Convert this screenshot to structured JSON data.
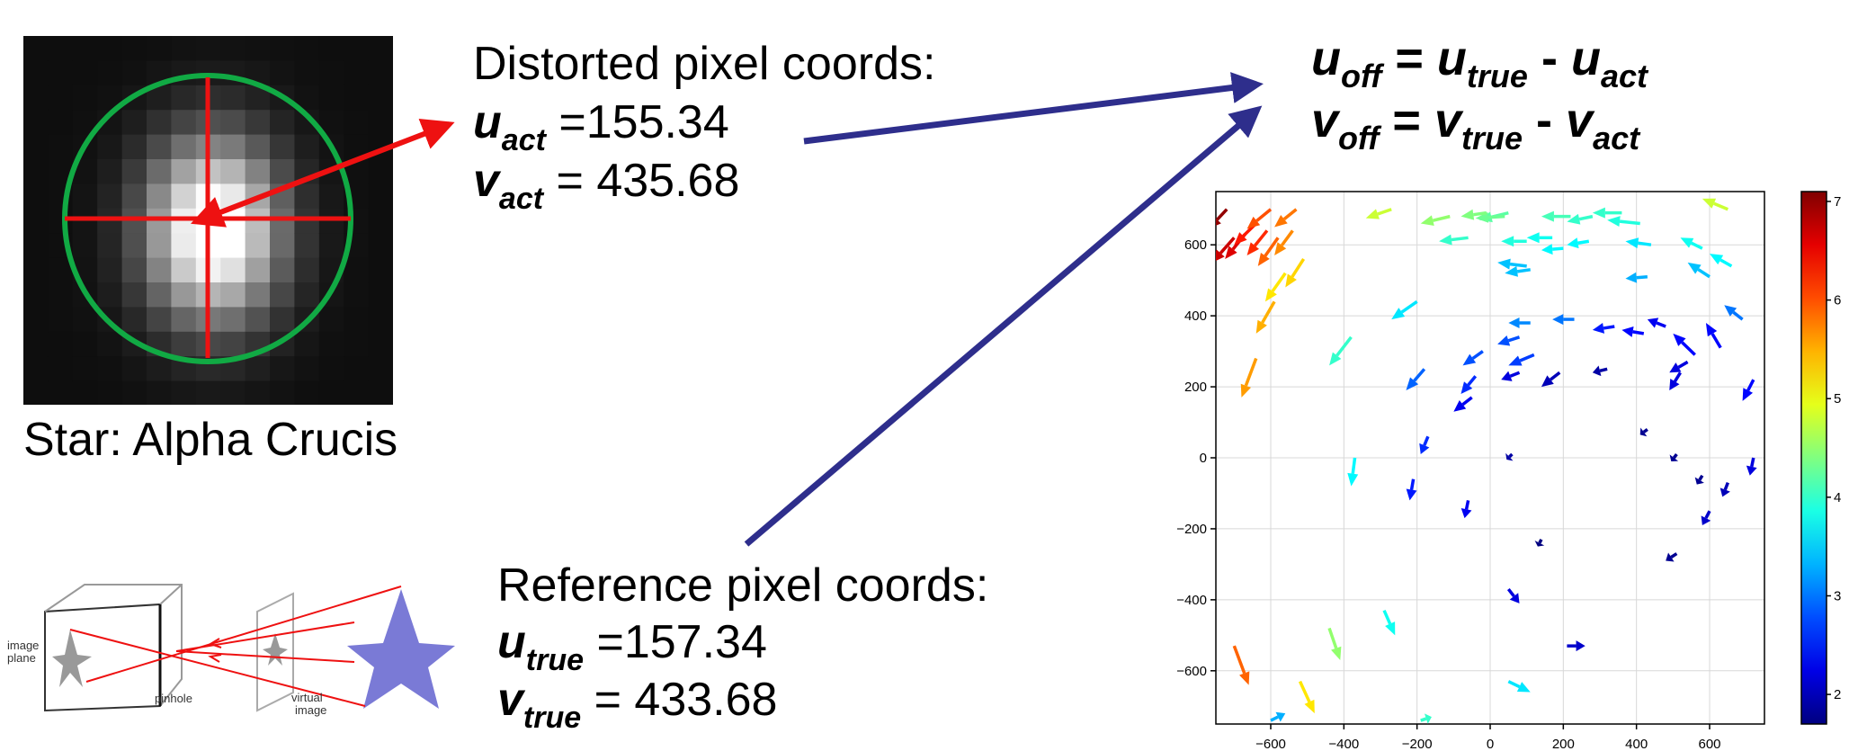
{
  "star_label": "Star: Alpha Crucis",
  "distorted": {
    "heading": "Distorted pixel coords:",
    "u_sym": "u",
    "u_sub": "act",
    "u_value": "=155.34",
    "v_sym": "v",
    "v_sub": "act",
    "v_value": "= 435.68"
  },
  "reference": {
    "heading": "Reference pixel coords:",
    "u_sym": "u",
    "u_sub": "true",
    "u_value": "=157.34",
    "v_sym": "v",
    "v_sub": "true",
    "v_value": "= 433.68"
  },
  "offset_equations": {
    "u_off_sym": "u",
    "u_off_sub": "off",
    "eq": "=",
    "minus": "-",
    "u_true_sym": "u",
    "u_true_sub": "true",
    "u_act_sym": "u",
    "u_act_sub": "act",
    "v_off_sym": "v",
    "v_off_sub": "off",
    "v_true_sym": "v",
    "v_true_sub": "true",
    "v_act_sym": "v",
    "v_act_sub": "act"
  },
  "pinhole_labels": {
    "image_plane_1": "image",
    "image_plane_2": "plane",
    "pinhole": "pinhole",
    "virtual_1": "virtual",
    "virtual_2": "image"
  },
  "colors": {
    "crosshair": "#ee1111",
    "circle": "#11aa44",
    "connector": "#2e2e8c",
    "star": "#7a7ad6"
  },
  "chart_data": {
    "type": "quiver",
    "xlim": [
      -750,
      750
    ],
    "ylim": [
      -750,
      750
    ],
    "xticks": [
      -600,
      -400,
      -200,
      0,
      200,
      400,
      600
    ],
    "yticks": [
      600,
      400,
      200,
      0,
      -200,
      -400,
      -600
    ],
    "xtick_labels": [
      "−600",
      "−400",
      "−200",
      "0",
      "200",
      "400",
      "600"
    ],
    "ytick_labels": [
      "600",
      "400",
      "200",
      "0",
      "−200",
      "−400",
      "−600"
    ],
    "grid": true,
    "colorbar": {
      "range": [
        1.7,
        7.1
      ],
      "ticks": [
        "7",
        "6",
        "5",
        "4",
        "3",
        "2"
      ],
      "tick_values": [
        7,
        6,
        5,
        4,
        3,
        2
      ],
      "colormap": "jet"
    },
    "vectors": [
      [
        -720,
        700,
        -50,
        -55,
        7.0
      ],
      [
        -700,
        620,
        -60,
        -70,
        6.7
      ],
      [
        -670,
        630,
        -55,
        -70,
        6.6
      ],
      [
        -640,
        660,
        -60,
        -60,
        6.3
      ],
      [
        -610,
        640,
        -55,
        -70,
        6.2
      ],
      [
        -600,
        700,
        -65,
        -55,
        6.0
      ],
      [
        -580,
        620,
        -55,
        -80,
        5.9
      ],
      [
        -540,
        640,
        -50,
        -70,
        5.7
      ],
      [
        -530,
        700,
        -60,
        -50,
        5.8
      ],
      [
        -510,
        560,
        -50,
        -80,
        5.3
      ],
      [
        -560,
        520,
        -55,
        -80,
        5.2
      ],
      [
        -590,
        440,
        -50,
        -90,
        5.5
      ],
      [
        -640,
        280,
        -40,
        -110,
        5.6
      ],
      [
        -270,
        700,
        -70,
        -25,
        4.8
      ],
      [
        -110,
        680,
        -80,
        -20,
        4.5
      ],
      [
        50,
        690,
        -80,
        -20,
        4.2
      ],
      [
        40,
        680,
        -80,
        -5,
        4.3
      ],
      [
        -10,
        690,
        -70,
        -10,
        4.4
      ],
      [
        280,
        680,
        -70,
        -15,
        4.0
      ],
      [
        220,
        680,
        -80,
        0,
        4.1
      ],
      [
        360,
        690,
        -80,
        0,
        4.0
      ],
      [
        410,
        660,
        -90,
        10,
        3.9
      ],
      [
        650,
        700,
        -70,
        30,
        4.8
      ],
      [
        -60,
        620,
        -80,
        -10,
        4.0
      ],
      [
        100,
        610,
        -70,
        0,
        3.9
      ],
      [
        170,
        620,
        -70,
        0,
        3.8
      ],
      [
        270,
        610,
        -60,
        -10,
        3.7
      ],
      [
        200,
        590,
        -60,
        -5,
        3.7
      ],
      [
        440,
        600,
        -70,
        10,
        3.6
      ],
      [
        580,
        590,
        -60,
        30,
        3.8
      ],
      [
        660,
        540,
        -60,
        35,
        3.7
      ],
      [
        100,
        540,
        -80,
        10,
        3.4
      ],
      [
        600,
        510,
        -60,
        40,
        3.4
      ],
      [
        430,
        510,
        -60,
        -5,
        3.3
      ],
      [
        110,
        530,
        -70,
        -10,
        3.4
      ],
      [
        -200,
        440,
        -70,
        -50,
        3.6
      ],
      [
        -380,
        340,
        -60,
        -80,
        4.0
      ],
      [
        110,
        380,
        -60,
        0,
        3.1
      ],
      [
        230,
        390,
        -60,
        0,
        3.0
      ],
      [
        690,
        390,
        -50,
        40,
        3.0
      ],
      [
        80,
        340,
        -60,
        -20,
        2.8
      ],
      [
        -20,
        300,
        -55,
        -40,
        2.8
      ],
      [
        120,
        290,
        -70,
        -30,
        2.7
      ],
      [
        340,
        370,
        -60,
        -10,
        2.5
      ],
      [
        420,
        350,
        -60,
        10,
        2.4
      ],
      [
        480,
        370,
        -50,
        20,
        2.3
      ],
      [
        560,
        290,
        -60,
        60,
        2.4
      ],
      [
        630,
        310,
        -40,
        70,
        2.4
      ],
      [
        540,
        270,
        -50,
        -30,
        2.2
      ],
      [
        -180,
        250,
        -50,
        -60,
        2.9
      ],
      [
        -40,
        230,
        -40,
        -50,
        2.6
      ],
      [
        80,
        240,
        -50,
        -20,
        2.2
      ],
      [
        190,
        240,
        -50,
        -40,
        2.0
      ],
      [
        320,
        250,
        -40,
        -10,
        1.9
      ],
      [
        -50,
        170,
        -50,
        -40,
        2.3
      ],
      [
        520,
        240,
        -30,
        -50,
        2.2
      ],
      [
        720,
        220,
        -30,
        -60,
        2.4
      ],
      [
        -370,
        0,
        -10,
        -80,
        3.7
      ],
      [
        -170,
        60,
        -20,
        -50,
        2.6
      ],
      [
        -210,
        -60,
        -10,
        -60,
        2.5
      ],
      [
        -60,
        -120,
        -10,
        -50,
        2.3
      ],
      [
        60,
        10,
        -15,
        -15,
        1.9
      ],
      [
        430,
        80,
        -20,
        -15,
        1.8
      ],
      [
        510,
        10,
        -15,
        -20,
        1.8
      ],
      [
        580,
        -50,
        -15,
        -25,
        1.8
      ],
      [
        650,
        -70,
        -15,
        -40,
        2.0
      ],
      [
        600,
        -150,
        -20,
        -40,
        2.1
      ],
      [
        720,
        0,
        -10,
        -50,
        2.2
      ],
      [
        140,
        -230,
        -10,
        -20,
        1.7
      ],
      [
        510,
        -270,
        -30,
        -20,
        1.8
      ],
      [
        50,
        -370,
        30,
        -40,
        2.2
      ],
      [
        210,
        -530,
        50,
        0,
        2.1
      ],
      [
        -290,
        -430,
        30,
        -70,
        3.8
      ],
      [
        -440,
        -480,
        30,
        -90,
        4.5
      ],
      [
        -700,
        -530,
        40,
        -110,
        5.9
      ],
      [
        -520,
        -630,
        40,
        -90,
        5.2
      ],
      [
        50,
        -630,
        60,
        -30,
        3.6
      ],
      [
        -600,
        -740,
        40,
        20,
        3.3
      ],
      [
        -190,
        -740,
        30,
        10,
        4.0
      ]
    ]
  }
}
